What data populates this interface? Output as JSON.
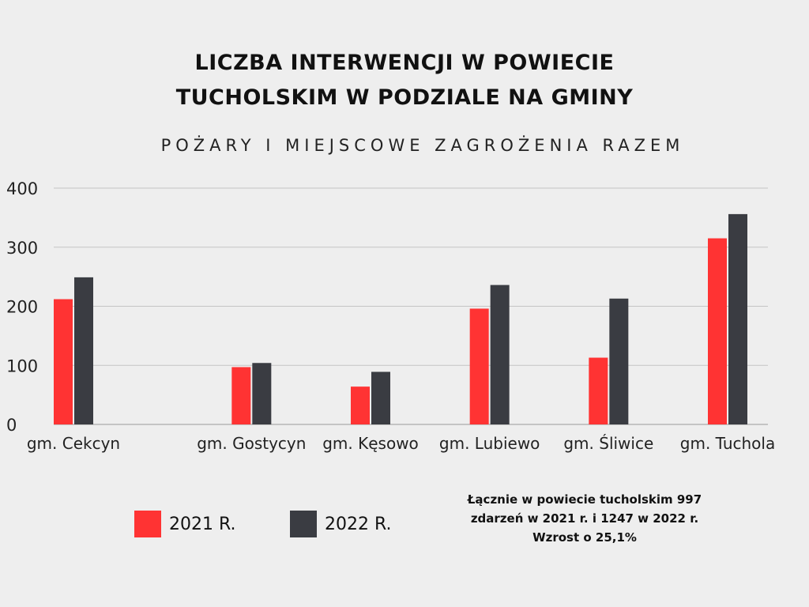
{
  "header": {
    "title_line1": "LICZBA INTERWENCJI W POWIECIE",
    "title_line2": "TUCHOLSKIM W PODZIALE NA GMINY",
    "subtitle": "POŻARY I MIEJSCOWE ZAGROŻENIA RAZEM"
  },
  "chart_data": {
    "type": "bar",
    "title": "LICZBA INTERWENCJI W POWIECIE TUCHOLSKIM W PODZIALE NA GMINY",
    "subtitle": "POŻARY I MIEJSCOWE ZAGROŻENIA RAZEM",
    "categories": [
      "gm. Cekcyn",
      "gm. Gostycyn",
      "gm. Kęsowo",
      "gm. Lubiewo",
      "gm. Śliwice",
      "gm. Tuchola"
    ],
    "series": [
      {
        "name": "2021 R.",
        "color": "#ff3333",
        "values": [
          212,
          97,
          64,
          196,
          113,
          315
        ]
      },
      {
        "name": "2022 R.",
        "color": "#3a3c42",
        "values": [
          249,
          104,
          89,
          236,
          213,
          356
        ]
      }
    ],
    "yticks": [
      0,
      100,
      200,
      300,
      400
    ],
    "ylim": [
      0,
      400
    ],
    "grid": true,
    "legend_position": "bottom-left"
  },
  "legend": {
    "items": [
      {
        "label": "2021 R.",
        "color": "#ff3333"
      },
      {
        "label": "2022 R.",
        "color": "#3a3c42"
      }
    ]
  },
  "note": {
    "line1": "Łącznie w powiecie tucholskim 997",
    "line2": "zdarzeń w 2021 r. i 1247 w 2022 r.",
    "line3": "Wzrost o 25,1%"
  }
}
